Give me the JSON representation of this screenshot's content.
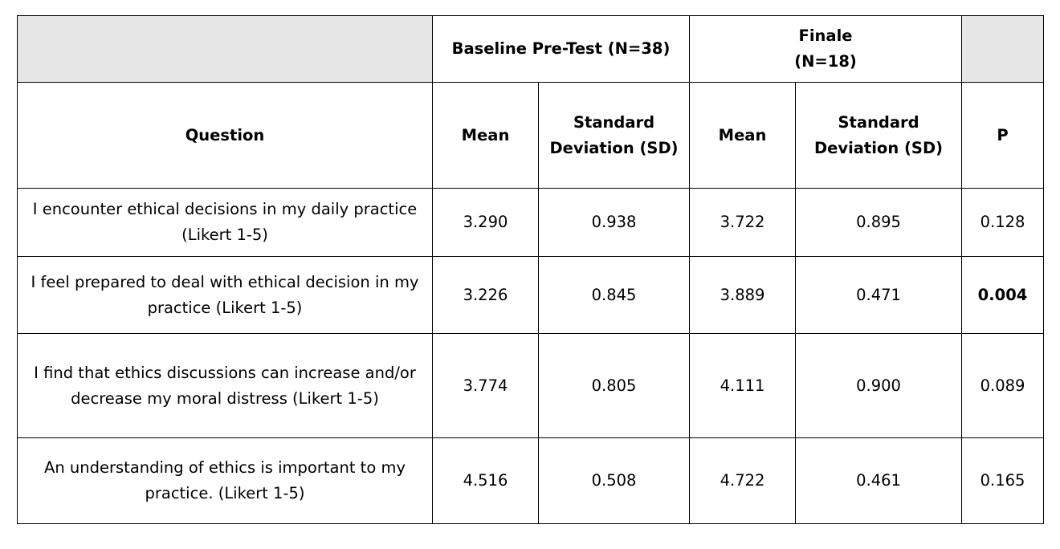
{
  "chart_data": {
    "type": "table",
    "groups": [
      {
        "label": "",
        "span": 1
      },
      {
        "label": "Baseline Pre-Test (N=38)",
        "span": 2
      },
      {
        "label": "Finale\n(N=18)",
        "span": 2
      },
      {
        "label": "",
        "span": 1
      }
    ],
    "columns": [
      "Question",
      "Mean",
      "Standard Deviation (SD)",
      "Mean",
      "Standard Deviation (SD)",
      "P"
    ],
    "rows": [
      {
        "question": "I encounter ethical decisions in my daily practice (Likert 1-5)",
        "baseline_mean": "3.290",
        "baseline_sd": "0.938",
        "finale_mean": "3.722",
        "finale_sd": "0.895",
        "p": "0.128",
        "p_bold": false
      },
      {
        "question": "I feel prepared to deal with ethical decision in my practice (Likert 1-5)",
        "baseline_mean": "3.226",
        "baseline_sd": "0.845",
        "finale_mean": "3.889",
        "finale_sd": "0.471",
        "p": "0.004",
        "p_bold": true
      },
      {
        "question": "I find that ethics discussions can increase and/or decrease my moral distress (Likert 1-5)",
        "baseline_mean": "3.774",
        "baseline_sd": "0.805",
        "finale_mean": "4.111",
        "finale_sd": "0.900",
        "p": "0.089",
        "p_bold": false
      },
      {
        "question": "An understanding of ethics is important to my practice. (Likert 1-5)",
        "baseline_mean": "4.516",
        "baseline_sd": "0.508",
        "finale_mean": "4.722",
        "finale_sd": "0.461",
        "p": "0.165",
        "p_bold": false
      }
    ]
  },
  "colors": {
    "header_shade": "#e6e6e6",
    "border": "#000000"
  }
}
